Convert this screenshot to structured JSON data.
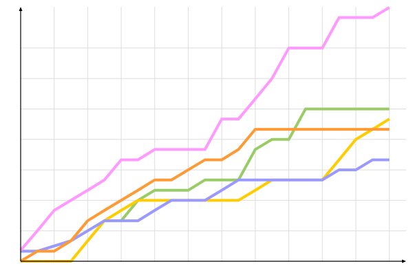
{
  "chart_data": {
    "type": "line",
    "title": "",
    "xlabel": "",
    "ylabel": "",
    "x": [
      0,
      1,
      2,
      3,
      4,
      5,
      6,
      7,
      8,
      9,
      10,
      11,
      12,
      13,
      14,
      15,
      16,
      17,
      18,
      19,
      20,
      21,
      22
    ],
    "xlim": [
      0,
      23
    ],
    "ylim": [
      0,
      8.35
    ],
    "x_grid_step": 2,
    "y_grid_step": 1,
    "grid": true,
    "legend": "none",
    "series": [
      {
        "color": "#99cc66",
        "values": [
          0.33,
          0.33,
          0.5,
          0.67,
          1.0,
          1.33,
          1.33,
          2,
          2.33,
          2.33,
          2.33,
          2.67,
          2.67,
          2.67,
          3.67,
          4,
          4,
          5,
          5,
          5,
          5,
          5,
          5
        ]
      },
      {
        "color": "#ffcc00",
        "values": [
          0,
          0,
          0,
          0,
          0.67,
          1.33,
          1.67,
          2,
          2,
          2,
          2,
          2,
          2,
          2,
          2.33,
          2.67,
          2.67,
          2.67,
          2.67,
          3.33,
          4,
          4.33,
          4.67
        ]
      },
      {
        "color": "#9999ff",
        "values": [
          0.33,
          0.33,
          0.5,
          0.67,
          1.0,
          1.33,
          1.33,
          1.33,
          1.67,
          2,
          2,
          2,
          2.33,
          2.67,
          2.67,
          2.67,
          2.67,
          2.67,
          2.67,
          3,
          3,
          3.33,
          3.33
        ]
      },
      {
        "color": "#ff9933",
        "values": [
          0,
          0.33,
          0.33,
          0.67,
          1.33,
          1.67,
          2,
          2.33,
          2.67,
          2.67,
          3,
          3.33,
          3.33,
          3.67,
          4.33,
          4.33,
          4.33,
          4.33,
          4.33,
          4.33,
          4.33,
          4.33,
          4.33
        ]
      },
      {
        "color": "#ff99ff",
        "values": [
          0.36,
          1,
          1.67,
          2,
          2.33,
          2.67,
          3.33,
          3.33,
          3.67,
          3.67,
          3.67,
          3.67,
          4.67,
          4.67,
          5.33,
          6,
          7,
          7,
          7,
          8,
          8,
          8,
          8.33
        ]
      }
    ]
  }
}
